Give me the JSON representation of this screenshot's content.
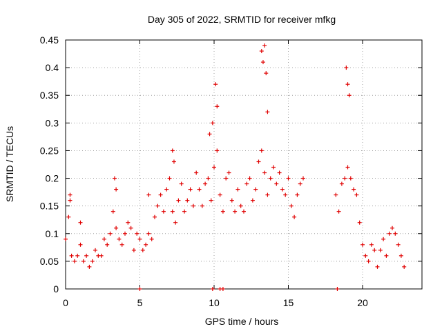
{
  "chart_data": {
    "type": "scatter",
    "title": "Day 305 of 2022, SRMTID for receiver mfkg",
    "xlabel": "GPS time / hours",
    "ylabel": "SRMTID / TECUs",
    "xlim": [
      0,
      24
    ],
    "ylim": [
      0,
      0.45
    ],
    "x_ticks": [
      0,
      5,
      10,
      15,
      20
    ],
    "x_tick_labels": [
      "0",
      "5",
      "10",
      "15",
      "20"
    ],
    "y_ticks": [
      0,
      0.05,
      0.1,
      0.15,
      0.2,
      0.25,
      0.3,
      0.35,
      0.4,
      0.45
    ],
    "y_tick_labels": [
      "0",
      "0.05",
      "0.1",
      "0.15",
      "0.2",
      "0.25",
      "0.3",
      "0.35",
      "0.4",
      "0.45"
    ],
    "grid": true,
    "marker": "plus",
    "marker_color": "#e00000",
    "series": [
      {
        "name": "SRMTID",
        "approximate": true,
        "x": [
          0.0,
          0.2,
          0.4,
          0.6,
          0.8,
          1.0,
          1.2,
          1.4,
          1.6,
          1.8,
          2.0,
          2.2,
          2.4,
          2.6,
          2.8,
          3.0,
          3.2,
          3.4,
          3.6,
          3.8,
          4.0,
          4.2,
          4.4,
          4.6,
          4.8,
          5.0,
          5.2,
          5.4,
          5.6,
          5.8,
          6.0,
          6.2,
          6.4,
          6.6,
          6.8,
          7.0,
          7.2,
          7.4,
          7.6,
          7.8,
          8.0,
          8.2,
          8.4,
          8.6,
          8.8,
          9.0,
          9.2,
          9.4,
          9.6,
          9.8,
          10.0,
          10.2,
          10.4,
          10.6,
          10.8,
          11.0,
          11.2,
          11.4,
          11.6,
          11.8,
          12.0,
          12.2,
          12.4,
          12.6,
          12.8,
          13.0,
          13.2,
          13.4,
          13.6,
          13.8,
          14.0,
          14.2,
          14.4,
          14.6,
          14.8,
          15.0,
          15.2,
          15.4,
          15.6,
          15.8,
          16.0,
          18.2,
          18.4,
          18.6,
          18.8,
          19.0,
          19.2,
          19.4,
          19.6,
          19.8,
          20.0,
          20.2,
          20.4,
          20.6,
          20.8,
          21.0,
          21.2,
          21.4,
          21.6,
          21.8,
          22.0,
          22.2,
          22.4,
          22.6,
          22.8,
          0.3,
          0.3,
          1.0,
          3.3,
          3.4,
          5.6,
          7.2,
          7.3,
          9.7,
          9.9,
          10.1,
          10.2,
          13.2,
          13.3,
          13.4,
          13.5,
          13.6,
          18.9,
          19.0,
          19.1,
          5.0,
          9.9,
          10.4,
          10.6,
          18.3
        ],
        "y": [
          0.09,
          0.13,
          0.06,
          0.05,
          0.06,
          0.08,
          0.05,
          0.06,
          0.04,
          0.05,
          0.07,
          0.06,
          0.06,
          0.09,
          0.08,
          0.1,
          0.14,
          0.11,
          0.09,
          0.08,
          0.1,
          0.12,
          0.11,
          0.07,
          0.1,
          0.09,
          0.07,
          0.08,
          0.1,
          0.09,
          0.13,
          0.15,
          0.17,
          0.14,
          0.18,
          0.2,
          0.14,
          0.12,
          0.16,
          0.19,
          0.14,
          0.16,
          0.18,
          0.15,
          0.21,
          0.18,
          0.15,
          0.19,
          0.2,
          0.16,
          0.22,
          0.25,
          0.17,
          0.14,
          0.2,
          0.21,
          0.16,
          0.14,
          0.18,
          0.15,
          0.14,
          0.19,
          0.2,
          0.16,
          0.18,
          0.23,
          0.25,
          0.21,
          0.17,
          0.2,
          0.22,
          0.19,
          0.21,
          0.18,
          0.17,
          0.2,
          0.15,
          0.13,
          0.17,
          0.19,
          0.2,
          0.17,
          0.14,
          0.19,
          0.2,
          0.22,
          0.2,
          0.18,
          0.17,
          0.12,
          0.08,
          0.06,
          0.05,
          0.08,
          0.07,
          0.04,
          0.07,
          0.09,
          0.06,
          0.1,
          0.11,
          0.1,
          0.08,
          0.06,
          0.04,
          0.16,
          0.17,
          0.12,
          0.2,
          0.18,
          0.17,
          0.25,
          0.23,
          0.28,
          0.3,
          0.37,
          0.33,
          0.43,
          0.41,
          0.44,
          0.39,
          0.32,
          0.4,
          0.37,
          0.35,
          0.0,
          0.0,
          0.0,
          0.0,
          0.0
        ]
      }
    ]
  }
}
